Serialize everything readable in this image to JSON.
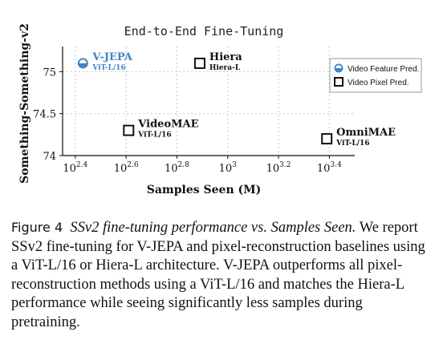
{
  "colors": {
    "vjepa": "#3d85c6",
    "dark": "#111111",
    "grid": "#c8c8c8"
  },
  "chart_data": {
    "type": "scatter",
    "title": "End-to-End Fine-Tuning",
    "xlabel": "Samples Seen (M)",
    "ylabel": "Something-Something-v2",
    "x_scale": "log10",
    "xlim": [
      2.35,
      3.5
    ],
    "ylim": [
      74.0,
      75.3
    ],
    "x_ticks": [
      {
        "base": "10",
        "exp": "2.4",
        "value": 2.4
      },
      {
        "base": "10",
        "exp": "2.6",
        "value": 2.6
      },
      {
        "base": "10",
        "exp": "2.8",
        "value": 2.8
      },
      {
        "base": "10",
        "exp": "3",
        "value": 3.0
      },
      {
        "base": "10",
        "exp": "3.2",
        "value": 3.2
      },
      {
        "base": "10",
        "exp": "3.4",
        "value": 3.4
      }
    ],
    "y_ticks": [
      {
        "label": "74",
        "value": 74.0
      },
      {
        "label": "74.5",
        "value": 74.5
      },
      {
        "label": "75",
        "value": 75.0
      }
    ],
    "grid": true,
    "legend_position": "top-right",
    "legend": [
      {
        "label": "Video Feature Pred.",
        "marker": "circle"
      },
      {
        "label": "Video Pixel Pred.",
        "marker": "square"
      }
    ],
    "points": [
      {
        "name": "V-JEPA",
        "arch": "ViT-L/16",
        "x": 2.43,
        "y": 75.1,
        "marker": "circle",
        "label_pos": "right"
      },
      {
        "name": "Hiera",
        "arch": "Hiera-L",
        "x": 2.89,
        "y": 75.1,
        "marker": "square",
        "label_pos": "right"
      },
      {
        "name": "VideoMAE",
        "arch": "ViT-L/16",
        "x": 2.61,
        "y": 74.3,
        "marker": "square",
        "label_pos": "right"
      },
      {
        "name": "OmniMAE",
        "arch": "ViT-L/16",
        "x": 3.39,
        "y": 74.2,
        "marker": "square",
        "label_pos": "right"
      }
    ]
  },
  "caption": {
    "label": "Figure 4",
    "subtitle": "SSv2 fine-tuning performance vs. Samples Seen.",
    "body": "We report SSv2 fine-tuning for V-JEPA and pixel-reconstruction baselines using a ViT-L/16 or Hiera-L architecture. V-JEPA outperforms all pixel-reconstruction methods using a ViT-L/16 and matches the Hiera-L performance while seeing significantly less samples during pretraining."
  }
}
